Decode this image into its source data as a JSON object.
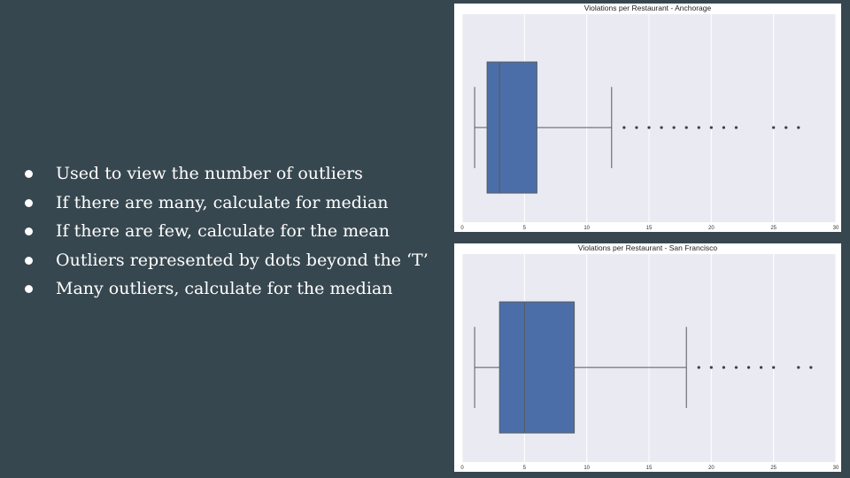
{
  "slide": {
    "background": "#37474f",
    "bullets": [
      "Used to view the number of outliers",
      "If there are many, calculate for median",
      "If there are few, calculate for the mean",
      "Outliers represented by dots beyond the ‘T’",
      "Many outliers, calculate for the median"
    ]
  },
  "chart_data": [
    {
      "type": "box",
      "title": "Violations per Restaurant - Anchorage",
      "xlim": [
        0,
        30
      ],
      "xticks": [
        0,
        5,
        10,
        15,
        20,
        25,
        30
      ],
      "grid": true,
      "orientation": "horizontal",
      "box": {
        "whisker_low": 1,
        "q1": 2,
        "median": 3,
        "q3": 6,
        "whisker_high": 12
      },
      "outliers": [
        13,
        14,
        15,
        16,
        17,
        18,
        19,
        20,
        21,
        22,
        25,
        26,
        27
      ],
      "color": "#4c6ea8"
    },
    {
      "type": "box",
      "title": "Violations per Restaurant - San Francisco",
      "xlim": [
        0,
        30
      ],
      "xticks": [
        0,
        5,
        10,
        15,
        20,
        25,
        30
      ],
      "grid": true,
      "orientation": "horizontal",
      "box": {
        "whisker_low": 1,
        "q1": 3,
        "median": 5,
        "q3": 9,
        "whisker_high": 18
      },
      "outliers": [
        19,
        20,
        21,
        22,
        23,
        24,
        25,
        27,
        28
      ],
      "color": "#4c6ea8"
    }
  ]
}
